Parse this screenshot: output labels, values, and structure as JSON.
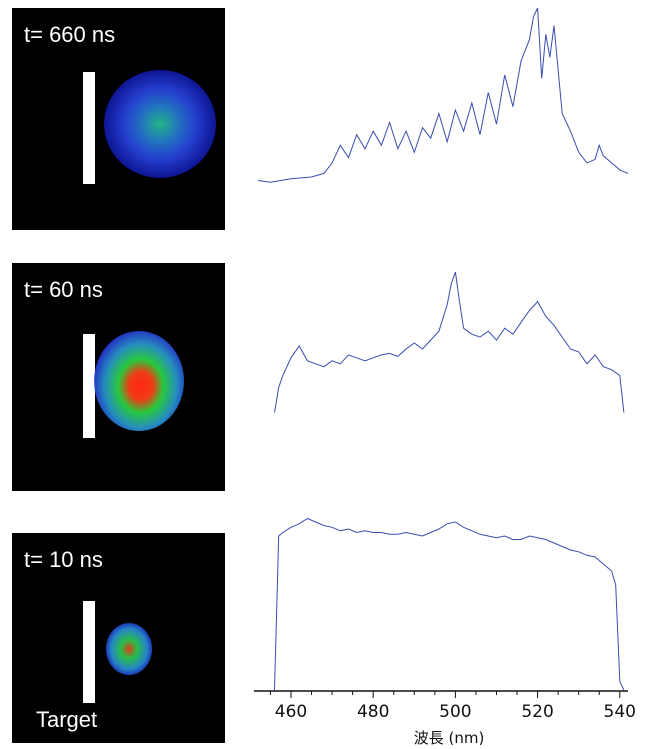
{
  "chart_data": {
    "type": "line",
    "xlabel": "波長 (nm)",
    "xlim": [
      451,
      542
    ],
    "xticks": [
      460,
      480,
      500,
      520,
      540
    ],
    "series_color": "#3a4db0",
    "panels": [
      {
        "time_label": "t= 660 ns",
        "plume": "blue diffuse plume with faint green core",
        "spectrum": {
          "x": [
            452,
            455,
            460,
            465,
            468,
            470,
            472,
            474,
            476,
            478,
            480,
            482,
            484,
            486,
            488,
            490,
            492,
            494,
            496,
            498,
            500,
            502,
            504,
            506,
            508,
            510,
            512,
            514,
            516,
            518,
            519,
            520,
            521,
            522,
            523,
            524,
            526,
            528,
            530,
            532,
            534,
            535,
            536,
            538,
            540,
            542
          ],
          "y": [
            0.02,
            0.01,
            0.03,
            0.04,
            0.06,
            0.12,
            0.22,
            0.15,
            0.28,
            0.2,
            0.3,
            0.22,
            0.35,
            0.2,
            0.3,
            0.18,
            0.32,
            0.26,
            0.4,
            0.24,
            0.42,
            0.3,
            0.46,
            0.28,
            0.52,
            0.34,
            0.62,
            0.44,
            0.7,
            0.82,
            0.95,
            1.0,
            0.6,
            0.85,
            0.72,
            0.9,
            0.4,
            0.3,
            0.18,
            0.12,
            0.14,
            0.22,
            0.16,
            0.12,
            0.08,
            0.06
          ]
        }
      },
      {
        "time_label": "t= 60 ns",
        "plume": "green plume with red core",
        "spectrum": {
          "x": [
            456,
            457,
            458,
            460,
            462,
            464,
            466,
            468,
            470,
            472,
            474,
            476,
            478,
            480,
            482,
            484,
            486,
            488,
            490,
            492,
            494,
            496,
            498,
            499,
            500,
            501,
            502,
            504,
            506,
            508,
            510,
            512,
            514,
            516,
            518,
            520,
            522,
            524,
            526,
            528,
            530,
            532,
            534,
            536,
            538,
            540,
            541
          ],
          "y": [
            0.05,
            0.22,
            0.3,
            0.42,
            0.5,
            0.4,
            0.38,
            0.36,
            0.4,
            0.38,
            0.44,
            0.42,
            0.4,
            0.42,
            0.44,
            0.45,
            0.43,
            0.48,
            0.52,
            0.48,
            0.54,
            0.6,
            0.78,
            0.92,
            1.0,
            0.8,
            0.62,
            0.58,
            0.56,
            0.6,
            0.54,
            0.62,
            0.58,
            0.66,
            0.74,
            0.8,
            0.7,
            0.64,
            0.56,
            0.48,
            0.46,
            0.38,
            0.44,
            0.36,
            0.34,
            0.3,
            0.05
          ]
        }
      },
      {
        "time_label": "t= 10 ns",
        "target_label": "Target",
        "plume": "small green plume with red core",
        "spectrum": {
          "x": [
            456,
            457,
            458,
            460,
            462,
            464,
            466,
            468,
            470,
            472,
            474,
            476,
            478,
            480,
            482,
            484,
            486,
            488,
            490,
            492,
            494,
            496,
            498,
            500,
            502,
            504,
            506,
            508,
            510,
            512,
            514,
            516,
            518,
            520,
            522,
            524,
            526,
            528,
            530,
            532,
            534,
            536,
            538,
            539,
            540,
            541
          ],
          "y": [
            0.0,
            0.88,
            0.9,
            0.93,
            0.95,
            0.98,
            0.96,
            0.94,
            0.93,
            0.91,
            0.92,
            0.9,
            0.91,
            0.9,
            0.9,
            0.89,
            0.89,
            0.9,
            0.89,
            0.88,
            0.9,
            0.92,
            0.95,
            0.96,
            0.93,
            0.91,
            0.89,
            0.88,
            0.87,
            0.88,
            0.86,
            0.86,
            0.88,
            0.87,
            0.86,
            0.84,
            0.82,
            0.8,
            0.79,
            0.77,
            0.76,
            0.72,
            0.68,
            0.6,
            0.05,
            0.0
          ]
        }
      }
    ]
  }
}
